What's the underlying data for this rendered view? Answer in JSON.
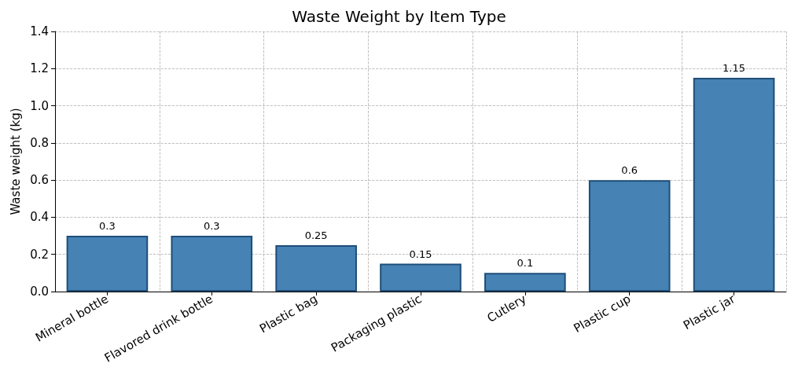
{
  "chart_data": {
    "type": "bar",
    "title": "Waste Weight by Item Type",
    "ylabel": "Waste weight (kg)",
    "categories": [
      "Mineral bottle",
      "Flavored drink bottle",
      "Plastic bag",
      "Packaging plastic",
      "Cutlery",
      "Plastic cup",
      "Plastic jar"
    ],
    "values": [
      0.3,
      0.3,
      0.25,
      0.15,
      0.1,
      0.6,
      1.15
    ],
    "color": "#4682b4",
    "data_labels": true,
    "ylim": [
      0,
      1.4
    ],
    "yticks": [
      {
        "value": 0,
        "label": "0.0"
      },
      {
        "value": 0.2,
        "label": "0.2"
      },
      {
        "value": 0.4,
        "label": "0.4"
      },
      {
        "value": 0.6,
        "label": "0.6"
      },
      {
        "value": 0.8,
        "label": "0.8"
      },
      {
        "value": 1,
        "label": "1.0"
      },
      {
        "value": 1.2,
        "label": "1.2"
      },
      {
        "value": 1.4,
        "label": "1.4"
      }
    ],
    "grid": true
  }
}
